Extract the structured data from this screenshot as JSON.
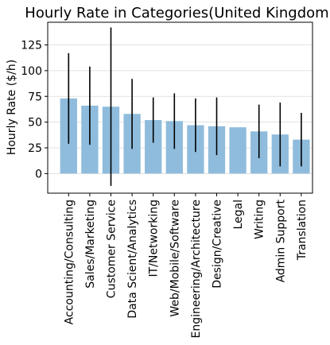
{
  "chart_data": {
    "type": "bar",
    "title": "Hourly Rate in Categories(United Kingdom)",
    "xlabel": "",
    "ylabel": "Hourly Rate ($/h)",
    "categories": [
      "Accounting/Consulting",
      "Sales/Marketing",
      "Customer Service",
      "Data Scient/Analytics",
      "IT/Networking",
      "Web/Mobile/Software",
      "Engineering/Architecture",
      "Design/Creative",
      "Legal",
      "Writing",
      "Admin Support",
      "Translation"
    ],
    "values": [
      73,
      66,
      65,
      58,
      52,
      51,
      47,
      46,
      45,
      41,
      38,
      33
    ],
    "errors": [
      44,
      38,
      77,
      34,
      22,
      27,
      26,
      28,
      0,
      26,
      31,
      26
    ],
    "ylim": [
      -19,
      147
    ],
    "yticks": [
      0,
      25,
      50,
      75,
      100,
      125
    ],
    "grid": "y",
    "bar_color": "#8fbcdc",
    "error_color": "#000000"
  }
}
